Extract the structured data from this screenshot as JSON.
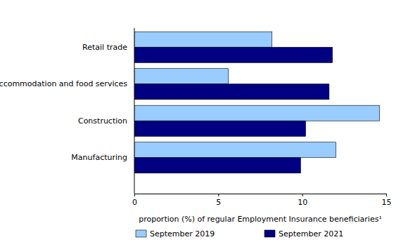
{
  "chart_data": {
    "type": "bar",
    "orientation": "horizontal",
    "categories": [
      "Retail trade",
      "Accommodation and food services",
      "Construction",
      "Manufacturing"
    ],
    "series": [
      {
        "name": "September 2019",
        "color": "#99ccff",
        "values": [
          8.2,
          5.6,
          14.6,
          12.0
        ]
      },
      {
        "name": "September 2021",
        "color": "#000080",
        "values": [
          11.8,
          11.6,
          10.2,
          9.9
        ]
      }
    ],
    "xlabel": "proportion (%) of regular Employment Insurance beneficiaries¹",
    "xlim": [
      0,
      15
    ],
    "xticks": [
      0,
      5,
      10,
      15
    ],
    "grid": false,
    "legend": "bottom"
  }
}
